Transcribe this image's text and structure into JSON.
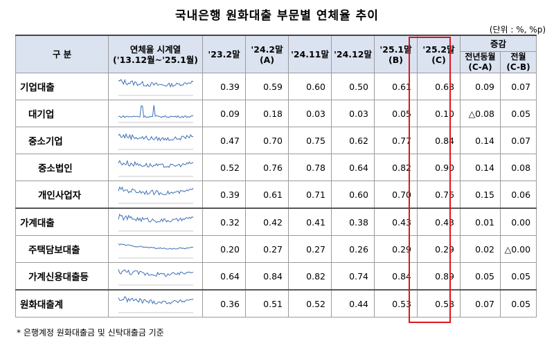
{
  "title": "국내은행 원화대출 부문별 연체율 추이",
  "unit": "(단위 : %, %p)",
  "header": {
    "category": "구 분",
    "sparkline_title": "연체율 시계열",
    "sparkline_sub": "('13.12월~'25.1월)",
    "col1": "'23.2말",
    "col2": "'24.2말",
    "col2_sub": "(A)",
    "col3": "'24.11말",
    "col4": "'24.12말",
    "col5": "'25.1말",
    "col5_sub": "(B)",
    "col6": "'25.2말",
    "col6_sub": "(C)",
    "change": "증감",
    "yoy": "전년동월",
    "yoy_sub": "(C-A)",
    "mom": "전월",
    "mom_sub": "(C-B)"
  },
  "rows": [
    {
      "label": "기업대출",
      "level": 0,
      "v": [
        "0.39",
        "0.59",
        "0.60",
        "0.50",
        "0.61",
        "0.68",
        "0.09",
        "0.07"
      ]
    },
    {
      "label": "대기업",
      "level": 1,
      "v": [
        "0.09",
        "0.18",
        "0.03",
        "0.03",
        "0.05",
        "0.10",
        "△0.08",
        "0.05"
      ]
    },
    {
      "label": "중소기업",
      "level": 1,
      "v": [
        "0.47",
        "0.70",
        "0.75",
        "0.62",
        "0.77",
        "0.84",
        "0.14",
        "0.07"
      ]
    },
    {
      "label": "중소법인",
      "level": 2,
      "v": [
        "0.52",
        "0.76",
        "0.78",
        "0.64",
        "0.82",
        "0.90",
        "0.14",
        "0.08"
      ]
    },
    {
      "label": "개인사업자",
      "level": 2,
      "v": [
        "0.39",
        "0.61",
        "0.71",
        "0.60",
        "0.70",
        "0.76",
        "0.15",
        "0.06"
      ]
    },
    {
      "label": "가계대출",
      "level": 0,
      "v": [
        "0.32",
        "0.42",
        "0.41",
        "0.38",
        "0.43",
        "0.43",
        "0.01",
        "0.00"
      ]
    },
    {
      "label": "주택담보대출",
      "level": 1,
      "v": [
        "0.20",
        "0.27",
        "0.27",
        "0.26",
        "0.29",
        "0.29",
        "0.02",
        "△0.00"
      ]
    },
    {
      "label": "가계신용대출등",
      "level": 1,
      "v": [
        "0.64",
        "0.84",
        "0.82",
        "0.74",
        "0.84",
        "0.89",
        "0.05",
        "0.05"
      ]
    },
    {
      "label": "원화대출계",
      "level": 0,
      "v": [
        "0.36",
        "0.51",
        "0.52",
        "0.44",
        "0.53",
        "0.58",
        "0.07",
        "0.05"
      ]
    }
  ],
  "footnote": "* 은행계정 원화대출금 및 신탁대출금 기준",
  "colors": {
    "header_bg": "#dbe3f1",
    "highlight_border": "#e0141e",
    "sparkline": "#3b6fb6"
  }
}
